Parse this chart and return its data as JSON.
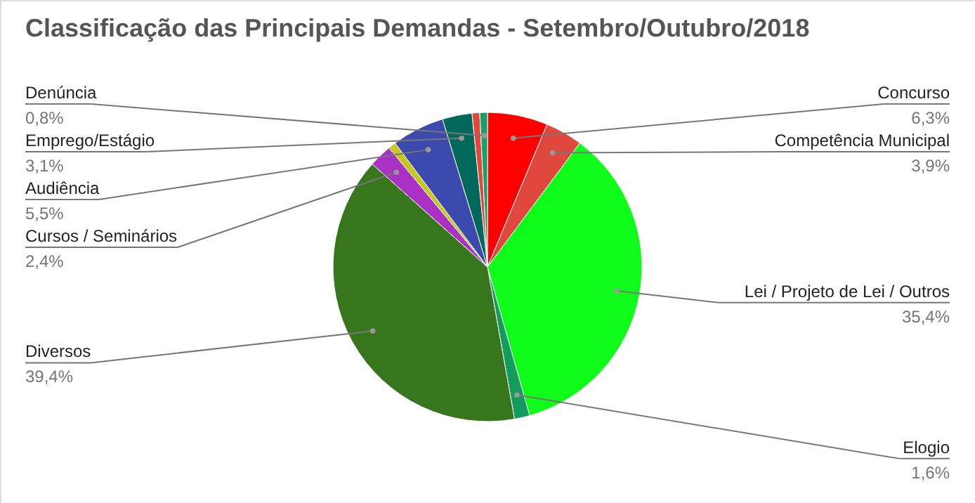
{
  "chart_data": {
    "type": "pie",
    "title": "Classificação das Principais Demandas - Setembro/Outubro/2018",
    "categories": [
      "Concurso",
      "Competência Municipal",
      "Lei / Projeto de Lei / Outros",
      "Elogio",
      "Diversos",
      "Cursos / Seminários",
      null,
      "Audiência",
      "Emprego/Estágio",
      null,
      "Denúncia"
    ],
    "values": [
      6.3,
      3.9,
      35.4,
      1.6,
      39.4,
      2.4,
      0.8,
      5.5,
      3.1,
      0.8,
      0.8
    ],
    "value_labels": [
      "6,3%",
      "3,9%",
      "35,4%",
      "1,6%",
      "39,4%",
      "2,4%",
      null,
      "5,5%",
      "3,1%",
      null,
      "0,8%"
    ],
    "colors": [
      "#ff0000",
      "#e0473d",
      "#0ffc1a",
      "#139c5c",
      "#38761d",
      "#a932c5",
      "#c8c71e",
      "#3c4aad",
      "#00695c",
      "#e0473d",
      "#16a06a"
    ],
    "legend": false
  }
}
